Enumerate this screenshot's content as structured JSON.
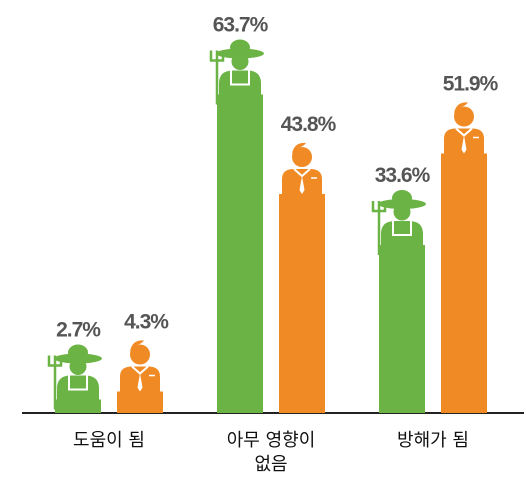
{
  "chart_data": {
    "type": "bar",
    "categories": [
      [
        "도움이 됨"
      ],
      [
        "아무 영향이",
        "없음"
      ],
      [
        "방해가 됨"
      ]
    ],
    "series": [
      {
        "color": "#6ab344",
        "values": [
          2.7,
          63.7,
          33.6
        ],
        "value_labels": [
          "2.7%",
          "63.7%",
          "33.6%"
        ]
      },
      {
        "color": "#f08a24",
        "values": [
          4.3,
          43.8,
          51.9
        ],
        "value_labels": [
          "4.3%",
          "43.8%",
          "51.9%"
        ]
      }
    ]
  }
}
